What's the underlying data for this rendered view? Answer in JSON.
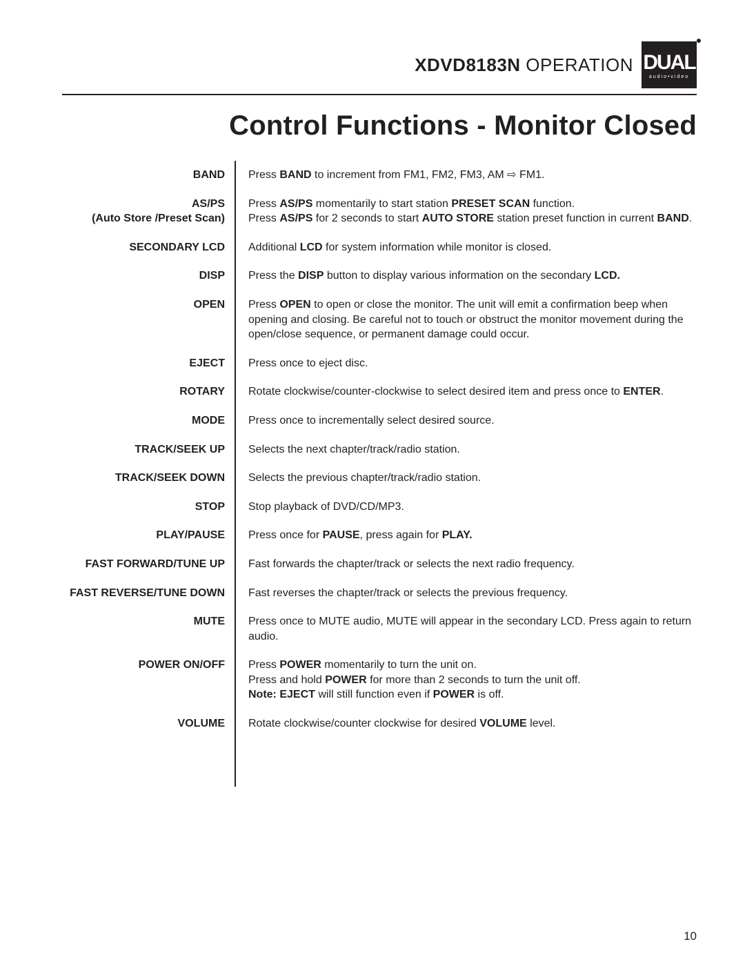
{
  "header": {
    "model": "XDVD8183N",
    "section": "OPERATION",
    "logo_main": "DUAL",
    "logo_sub": "audio•video"
  },
  "title": "Control Functions - Monitor Closed",
  "page_number": "10",
  "rows": [
    {
      "label": "BAND",
      "sublabel": "",
      "desc": "Press <b>BAND</b> to increment from FM1, FM2, FM3, AM ⇨ FM1."
    },
    {
      "label": "AS/PS",
      "sublabel": "(Auto Store /Preset Scan)",
      "desc": "Press <b>AS/PS</b> momentarily to start station <b>PRESET SCAN</b> function.<br>Press <b>AS/PS</b> for 2 seconds to start <b>AUTO STORE</b> station preset function in current <b>BAND</b>."
    },
    {
      "label": "SECONDARY LCD",
      "sublabel": "",
      "desc": "Additional <b>LCD</b> for system information while monitor is closed."
    },
    {
      "label": "DISP",
      "sublabel": "",
      "desc": "Press the <b>DISP</b> button to display various information on the secondary <b>LCD.</b>"
    },
    {
      "label": "OPEN",
      "sublabel": "",
      "desc": "Press <b>OPEN</b> to open or close the monitor. The unit will emit a confirmation beep when opening and closing. Be careful not to touch or obstruct the monitor movement during the open/close sequence, or permanent damage could occur."
    },
    {
      "label": "EJECT",
      "sublabel": "",
      "desc": "Press once to eject disc."
    },
    {
      "label": "ROTARY",
      "sublabel": "",
      "desc": "Rotate clockwise/counter-clockwise to select desired item and press once to <b>ENTER</b>."
    },
    {
      "label": "MODE",
      "sublabel": "",
      "desc": "Press once to incrementally select desired source."
    },
    {
      "label": "TRACK/SEEK UP",
      "sublabel": "",
      "desc": "Selects the next chapter/track/radio station."
    },
    {
      "label": "TRACK/SEEK DOWN",
      "sublabel": "",
      "desc": "Selects the previous chapter/track/radio station."
    },
    {
      "label": "STOP",
      "sublabel": "",
      "desc": "Stop playback of DVD/CD/MP3."
    },
    {
      "label": "PLAY/PAUSE",
      "sublabel": "",
      "desc": "Press once for <b>PAUSE</b>, press again for <b>PLAY.</b>"
    },
    {
      "label": "FAST FORWARD/TUNE UP",
      "sublabel": "",
      "desc": "Fast forwards the chapter/track or selects the next radio frequency."
    },
    {
      "label": "FAST REVERSE/TUNE DOWN",
      "sublabel": "",
      "desc": "Fast reverses the chapter/track or selects the previous frequency."
    },
    {
      "label": "MUTE",
      "sublabel": "",
      "desc": "Press once to MUTE audio, MUTE will appear in the secondary LCD. Press again to return audio."
    },
    {
      "label": "POWER ON/OFF",
      "sublabel": "",
      "desc": "Press <b>POWER</b> momentarily to turn the unit on.<br>Press and hold <b>POWER</b> for more than 2 seconds to turn the unit off.<br><b>Note: EJECT</b> will still function even if <b>POWER</b> is off."
    },
    {
      "label": "VOLUME",
      "sublabel": "",
      "desc": "Rotate clockwise/counter clockwise for desired <b>VOLUME</b> level."
    }
  ]
}
